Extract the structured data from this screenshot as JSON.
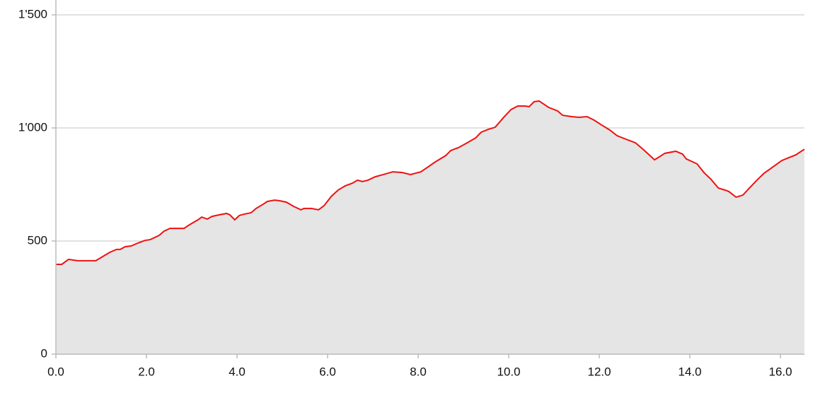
{
  "chart_data": {
    "type": "area",
    "x": [
      0,
      0.13,
      0.28,
      0.48,
      0.88,
      1.03,
      1.19,
      1.34,
      1.42,
      1.53,
      1.66,
      1.81,
      1.97,
      2.08,
      2.28,
      2.39,
      2.52,
      2.75,
      2.83,
      2.95,
      3.14,
      3.22,
      3.34,
      3.45,
      3.61,
      3.77,
      3.84,
      3.95,
      4.05,
      4.16,
      4.31,
      4.42,
      4.58,
      4.67,
      4.83,
      4.94,
      5.09,
      5.25,
      5.41,
      5.48,
      5.64,
      5.8,
      5.92,
      6.08,
      6.23,
      6.39,
      6.55,
      6.66,
      6.77,
      6.89,
      7.05,
      7.23,
      7.44,
      7.64,
      7.83,
      8.06,
      8.22,
      8.38,
      8.61,
      8.72,
      8.89,
      9.08,
      9.27,
      9.39,
      9.55,
      9.7,
      9.89,
      10.05,
      10.2,
      10.36,
      10.45,
      10.56,
      10.67,
      10.88,
      11.08,
      11.19,
      11.39,
      11.55,
      11.73,
      11.89,
      12.05,
      12.23,
      12.39,
      12.59,
      12.8,
      12.98,
      13.22,
      13.45,
      13.69,
      13.84,
      13.92,
      14.16,
      14.31,
      14.47,
      14.63,
      14.78,
      14.86,
      15.02,
      15.17,
      15.3,
      15.48,
      15.64,
      15.88,
      16.03,
      16.19,
      16.34,
      16.53
    ],
    "series": [
      {
        "color": "#ee1111",
        "fill": "#e5e5e5",
        "values": [
          397,
          397,
          419,
          413,
          413,
          431,
          450,
          463,
          463,
          475,
          478,
          491,
          503,
          506,
          525,
          544,
          556,
          556,
          556,
          572,
          594,
          606,
          597,
          609,
          616,
          622,
          616,
          594,
          613,
          619,
          625,
          644,
          663,
          675,
          681,
          678,
          672,
          653,
          638,
          644,
          644,
          638,
          656,
          697,
          725,
          744,
          756,
          769,
          763,
          769,
          784,
          794,
          806,
          803,
          794,
          806,
          828,
          850,
          878,
          900,
          913,
          934,
          956,
          981,
          994,
          1003,
          1047,
          1081,
          1097,
          1097,
          1094,
          1116,
          1119,
          1091,
          1075,
          1056,
          1050,
          1047,
          1050,
          1034,
          1013,
          991,
          966,
          950,
          934,
          903,
          859,
          888,
          897,
          884,
          863,
          841,
          803,
          772,
          734,
          725,
          719,
          694,
          703,
          731,
          769,
          800,
          834,
          856,
          869,
          881,
          906
        ]
      }
    ],
    "xlim": [
      0,
      16.53
    ],
    "ylim": [
      0,
      1500
    ],
    "xticks": [
      {
        "value": 0,
        "label": "0.0"
      },
      {
        "value": 2,
        "label": "2.0"
      },
      {
        "value": 4,
        "label": "4.0"
      },
      {
        "value": 6,
        "label": "6.0"
      },
      {
        "value": 8,
        "label": "8.0"
      },
      {
        "value": 10,
        "label": "10.0"
      },
      {
        "value": 12,
        "label": "12.0"
      },
      {
        "value": 14,
        "label": "14.0"
      },
      {
        "value": 16,
        "label": "16.0"
      }
    ],
    "yticks": [
      0,
      500,
      {
        "value": 1000,
        "label": "1'000"
      },
      {
        "value": 1500,
        "label": "1'500"
      }
    ],
    "grid": true
  }
}
